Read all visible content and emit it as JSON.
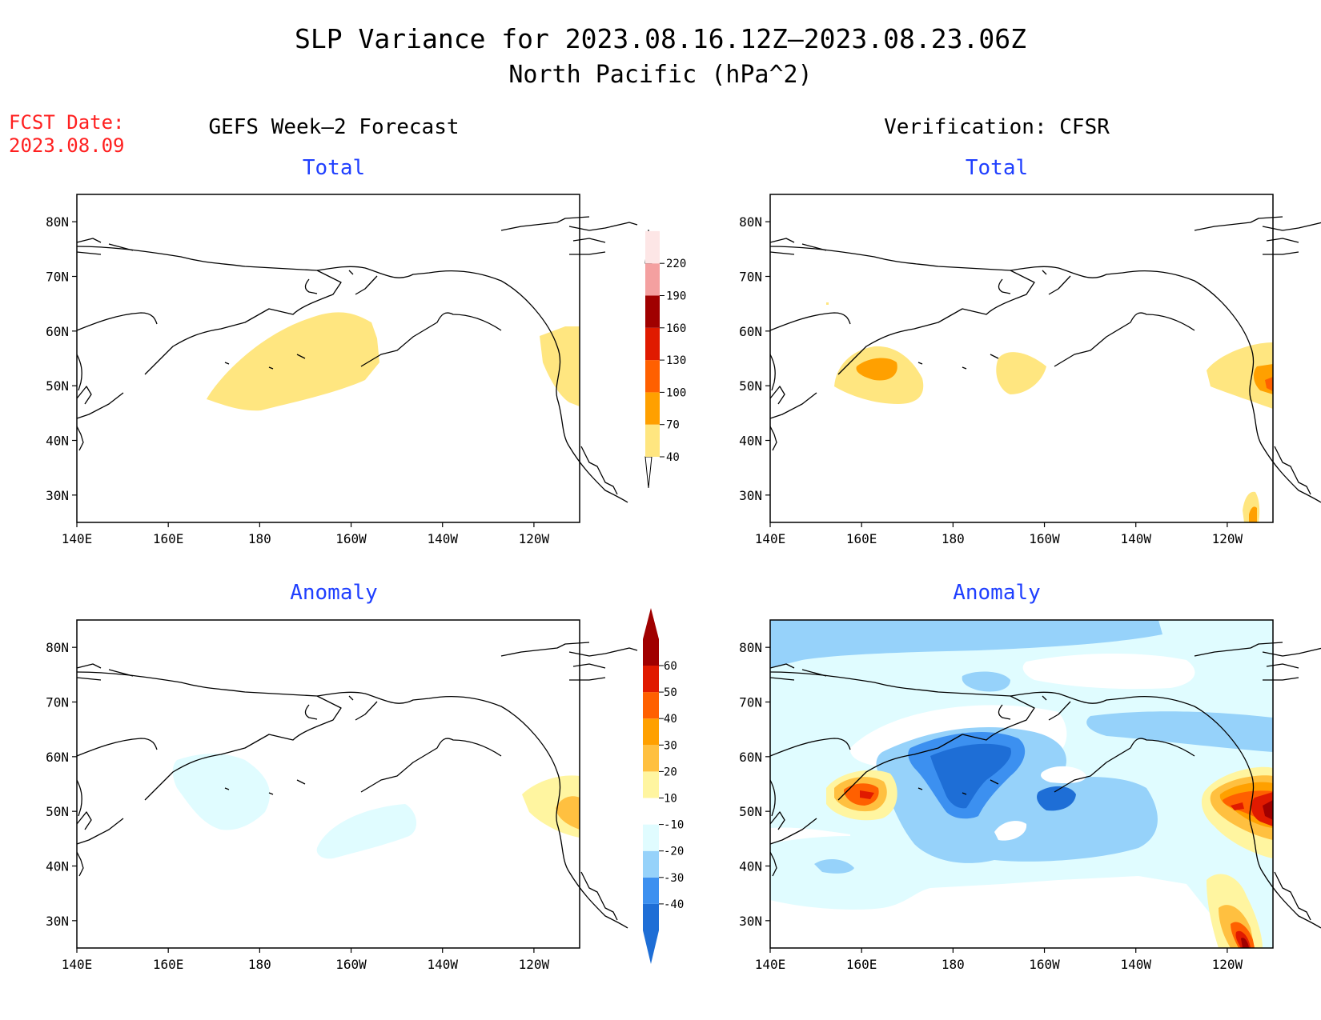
{
  "title_line1": "SLP Variance for 2023.08.16.12Z–2023.08.23.06Z",
  "title_line2": "North Pacific (hPa^2)",
  "fcst_label": "FCST Date:",
  "fcst_date": "2023.08.09",
  "left_column_title": "GEFS Week–2 Forecast",
  "right_column_title": "Verification: CFSR",
  "panels": [
    {
      "id": "gefs-total",
      "subtitle": "Total"
    },
    {
      "id": "cfsr-total",
      "subtitle": "Total"
    },
    {
      "id": "gefs-anomaly",
      "subtitle": "Anomaly"
    },
    {
      "id": "cfsr-anomaly",
      "subtitle": "Anomaly"
    }
  ],
  "lat_labels": [
    "80N",
    "70N",
    "60N",
    "50N",
    "40N",
    "30N"
  ],
  "lat_values": [
    80,
    70,
    60,
    50,
    40,
    30
  ],
  "lon_labels": [
    "140E",
    "160E",
    "180",
    "160W",
    "140W",
    "120W"
  ],
  "lon_values": [
    140,
    160,
    180,
    200,
    220,
    240
  ],
  "map_extent": {
    "lon": [
      140,
      250
    ],
    "lat": [
      25,
      85
    ]
  },
  "total_colorbar": {
    "labels": [
      "40",
      "70",
      "100",
      "130",
      "160",
      "190",
      "220"
    ],
    "colors": [
      "#ffe680",
      "#ffa000",
      "#ff6000",
      "#e01a00",
      "#a00000",
      "#f4a0a0",
      "#fde6e6"
    ]
  },
  "anomaly_colorbar": {
    "labels": [
      "-40",
      "-30",
      "-20",
      "-10",
      "10",
      "20",
      "30",
      "40",
      "50",
      "60"
    ],
    "colors": [
      "#1e6ed6",
      "#3c90f0",
      "#96d2fa",
      "#e0fcff",
      "#ffffff",
      "#fff5a0",
      "#ffc040",
      "#ffa000",
      "#ff6000",
      "#e01a00",
      "#a00000"
    ]
  }
}
